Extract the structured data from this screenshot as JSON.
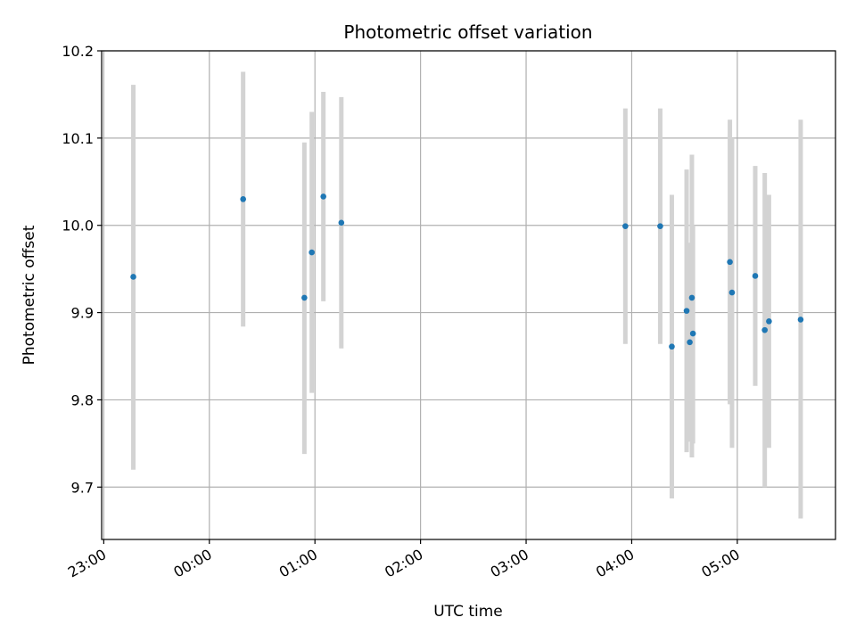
{
  "chart_data": {
    "type": "scatter",
    "title": "Photometric offset variation",
    "xlabel": "UTC time",
    "ylabel": "Photometric offset",
    "grid": true,
    "xlim_hours": [
      -1.02,
      5.93
    ],
    "ylim": [
      9.64,
      10.2
    ],
    "x_ticks": [
      {
        "label": "23:00",
        "hours": -1
      },
      {
        "label": "00:00",
        "hours": 0
      },
      {
        "label": "01:00",
        "hours": 1
      },
      {
        "label": "02:00",
        "hours": 2
      },
      {
        "label": "03:00",
        "hours": 3
      },
      {
        "label": "04:00",
        "hours": 4
      },
      {
        "label": "05:00",
        "hours": 5
      }
    ],
    "y_ticks": [
      {
        "label": "9.7",
        "value": 9.7
      },
      {
        "label": "9.8",
        "value": 9.8
      },
      {
        "label": "9.9",
        "value": 9.9
      },
      {
        "label": "10.0",
        "value": 10.0
      },
      {
        "label": "10.1",
        "value": 10.1
      },
      {
        "label": "10.2",
        "value": 10.2
      }
    ],
    "point_color": "#1f77b4",
    "errorbar_color": "#d3d3d3",
    "points": [
      {
        "hours": -0.72,
        "y": 9.941,
        "low": 9.72,
        "high": 10.161
      },
      {
        "hours": 0.32,
        "y": 10.03,
        "low": 9.884,
        "high": 10.176
      },
      {
        "hours": 0.9,
        "y": 9.917,
        "low": 9.738,
        "high": 10.095
      },
      {
        "hours": 0.97,
        "y": 9.969,
        "low": 9.808,
        "high": 10.13
      },
      {
        "hours": 1.08,
        "y": 10.033,
        "low": 9.913,
        "high": 10.153
      },
      {
        "hours": 1.25,
        "y": 10.003,
        "low": 9.859,
        "high": 10.147
      },
      {
        "hours": 3.94,
        "y": 9.999,
        "low": 9.864,
        "high": 10.134
      },
      {
        "hours": 4.27,
        "y": 9.999,
        "low": 9.864,
        "high": 10.134
      },
      {
        "hours": 4.38,
        "y": 9.861,
        "low": 9.687,
        "high": 10.035
      },
      {
        "hours": 4.52,
        "y": 9.902,
        "low": 9.74,
        "high": 10.064
      },
      {
        "hours": 4.55,
        "y": 9.866,
        "low": 9.752,
        "high": 9.98
      },
      {
        "hours": 4.57,
        "y": 9.917,
        "low": 9.734,
        "high": 10.081
      },
      {
        "hours": 4.58,
        "y": 9.876,
        "low": 9.75,
        "high": 10.0
      },
      {
        "hours": 4.93,
        "y": 9.958,
        "low": 9.795,
        "high": 10.121
      },
      {
        "hours": 4.95,
        "y": 9.923,
        "low": 9.745,
        "high": 10.1
      },
      {
        "hours": 5.17,
        "y": 9.942,
        "low": 9.816,
        "high": 10.068
      },
      {
        "hours": 5.26,
        "y": 9.88,
        "low": 9.7,
        "high": 10.06
      },
      {
        "hours": 5.3,
        "y": 9.89,
        "low": 9.745,
        "high": 10.035
      },
      {
        "hours": 5.6,
        "y": 9.892,
        "low": 9.664,
        "high": 10.121
      }
    ]
  }
}
